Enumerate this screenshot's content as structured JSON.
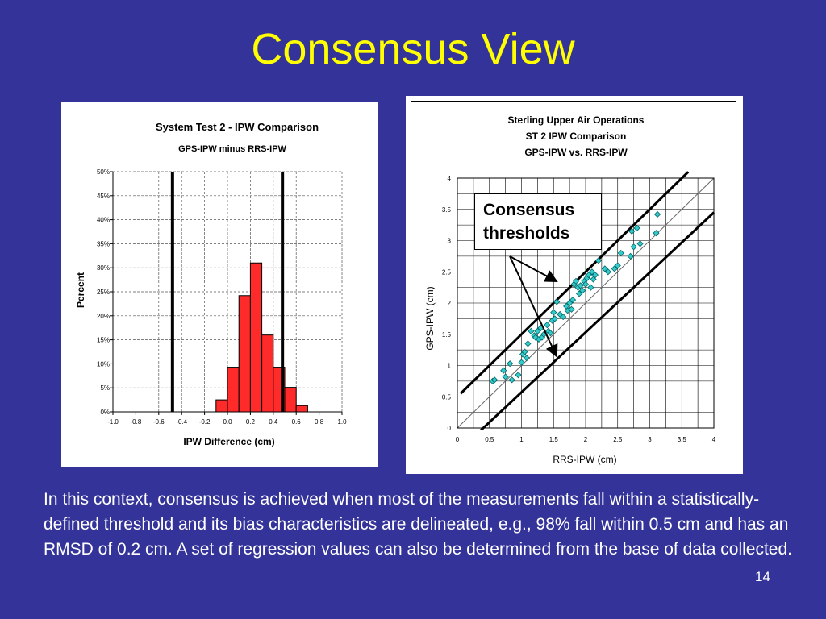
{
  "slide": {
    "title": "Consensus View",
    "body": "In this context, consensus is achieved when most of the measurements fall within a statistically-defined threshold and its bias characteristics are delineated, e.g., 98% fall within 0.5 cm and has an RMSD of 0.2 cm.  A set of regression values can also be determined from the base of data collected.",
    "page_number": "14",
    "callout": "Consensus thresholds"
  },
  "colors": {
    "background": "#333399",
    "title": "#ffff00",
    "bars": "#ff2b2b",
    "markers": "#33cccc"
  },
  "chart_data": [
    {
      "type": "bar",
      "title": "System Test 2 - IPW Comparison",
      "subtitle": "GPS-IPW minus RRS-IPW",
      "xlabel": "IPW Difference (cm)",
      "ylabel": "Percent",
      "xlim": [
        -1.0,
        1.0
      ],
      "ylim": [
        0,
        50
      ],
      "x_ticks": [
        "-1.0",
        "-0.8",
        "-0.6",
        "-0.4",
        "-0.2",
        "0.0",
        "0.2",
        "0.4",
        "0.6",
        "0.8",
        "1.0"
      ],
      "y_ticks": [
        "0%",
        "5%",
        "10%",
        "15%",
        "20%",
        "25%",
        "30%",
        "35%",
        "40%",
        "45%",
        "50%"
      ],
      "bins": [
        {
          "from": -0.1,
          "to": 0.0,
          "value": 2.5
        },
        {
          "from": 0.0,
          "to": 0.1,
          "value": 9.3
        },
        {
          "from": 0.1,
          "to": 0.2,
          "value": 24.2
        },
        {
          "from": 0.2,
          "to": 0.3,
          "value": 31.0
        },
        {
          "from": 0.3,
          "to": 0.4,
          "value": 16.0
        },
        {
          "from": 0.4,
          "to": 0.5,
          "value": 9.3
        },
        {
          "from": 0.5,
          "to": 0.6,
          "value": 5.1
        },
        {
          "from": 0.6,
          "to": 0.7,
          "value": 1.3
        }
      ],
      "threshold_lines": [
        -0.48,
        0.48
      ],
      "grid": true
    },
    {
      "type": "scatter",
      "title": "Sterling Upper Air Operations",
      "subtitle": [
        "ST 2 IPW Comparison",
        "GPS-IPW vs. RRS-IPW"
      ],
      "xlabel": "RRS-IPW (cm)",
      "ylabel": "GPS-IPW (cm)",
      "xlim": [
        0,
        4
      ],
      "ylim": [
        0,
        4
      ],
      "x_ticks": [
        "0",
        "0.5",
        "1",
        "1.5",
        "2",
        "2.5",
        "3",
        "3.5",
        "4"
      ],
      "y_ticks": [
        "0",
        "0.5",
        "1",
        "1.5",
        "2",
        "2.5",
        "3",
        "3.5",
        "4"
      ],
      "grid": true,
      "one_to_one_line": true,
      "threshold_lines": [
        {
          "x1": 0.05,
          "y1": 0.55,
          "x2": 3.6,
          "y2": 4.1
        },
        {
          "x1": 0.3,
          "y1": -0.1,
          "x2": 4.0,
          "y2": 3.45
        }
      ],
      "points": [
        [
          0.55,
          0.75
        ],
        [
          0.58,
          0.77
        ],
        [
          0.72,
          0.92
        ],
        [
          0.75,
          0.82
        ],
        [
          0.82,
          1.03
        ],
        [
          0.85,
          0.77
        ],
        [
          0.95,
          0.85
        ],
        [
          1.0,
          1.05
        ],
        [
          1.02,
          1.18
        ],
        [
          1.05,
          1.22
        ],
        [
          1.08,
          1.12
        ],
        [
          1.1,
          1.35
        ],
        [
          1.15,
          1.55
        ],
        [
          1.2,
          1.48
        ],
        [
          1.22,
          1.45
        ],
        [
          1.25,
          1.55
        ],
        [
          1.27,
          1.42
        ],
        [
          1.3,
          1.6
        ],
        [
          1.32,
          1.45
        ],
        [
          1.35,
          1.5
        ],
        [
          1.4,
          1.65
        ],
        [
          1.42,
          1.55
        ],
        [
          1.45,
          1.52
        ],
        [
          1.48,
          1.72
        ],
        [
          1.5,
          1.85
        ],
        [
          1.52,
          1.75
        ],
        [
          1.55,
          2.02
        ],
        [
          1.6,
          1.82
        ],
        [
          1.65,
          1.78
        ],
        [
          1.7,
          1.95
        ],
        [
          1.72,
          1.88
        ],
        [
          1.75,
          2.0
        ],
        [
          1.78,
          1.9
        ],
        [
          1.8,
          2.05
        ],
        [
          1.82,
          2.3
        ],
        [
          1.85,
          2.35
        ],
        [
          1.88,
          2.25
        ],
        [
          1.9,
          2.15
        ],
        [
          1.92,
          2.28
        ],
        [
          1.95,
          2.2
        ],
        [
          1.98,
          2.35
        ],
        [
          2.0,
          2.3
        ],
        [
          2.02,
          2.4
        ],
        [
          2.05,
          2.45
        ],
        [
          2.08,
          2.25
        ],
        [
          2.1,
          2.5
        ],
        [
          2.12,
          2.38
        ],
        [
          2.15,
          2.45
        ],
        [
          2.2,
          2.68
        ],
        [
          2.3,
          2.55
        ],
        [
          2.35,
          2.5
        ],
        [
          2.45,
          2.55
        ],
        [
          2.5,
          2.6
        ],
        [
          2.55,
          2.8
        ],
        [
          2.7,
          2.75
        ],
        [
          2.72,
          3.15
        ],
        [
          2.75,
          2.9
        ],
        [
          2.8,
          3.2
        ],
        [
          2.85,
          2.95
        ],
        [
          3.1,
          3.12
        ],
        [
          3.12,
          3.42
        ]
      ]
    }
  ]
}
